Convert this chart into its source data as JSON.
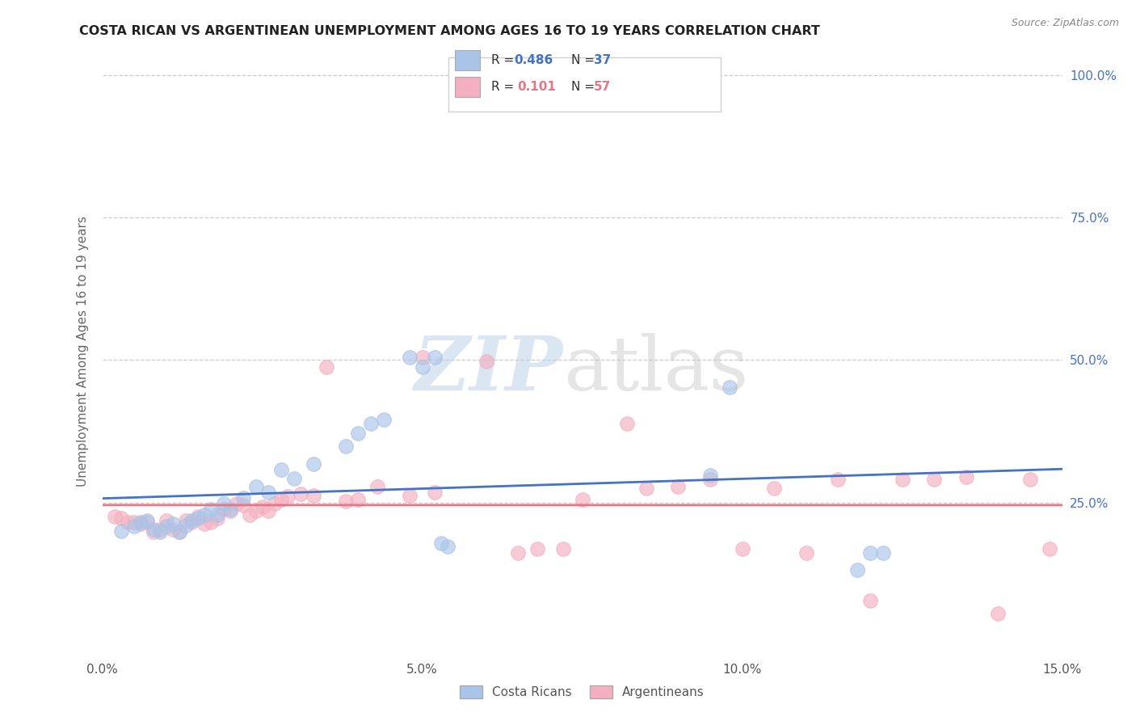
{
  "title": "COSTA RICAN VS ARGENTINEAN UNEMPLOYMENT AMONG AGES 16 TO 19 YEARS CORRELATION CHART",
  "source": "Source: ZipAtlas.com",
  "ylabel": "Unemployment Among Ages 16 to 19 years",
  "xlim": [
    0.0,
    0.15
  ],
  "ylim": [
    -0.02,
    1.05
  ],
  "xticks": [
    0.0,
    0.05,
    0.1,
    0.15
  ],
  "xticklabels": [
    "0.0%",
    "5.0%",
    "10.0%",
    "15.0%"
  ],
  "right_yticks": [
    1.0,
    0.75,
    0.5,
    0.25
  ],
  "right_yticklabels": [
    "100.0%",
    "75.0%",
    "50.0%",
    "25.0%"
  ],
  "blue_scatter_color": "#aac4e8",
  "pink_scatter_color": "#f4b0c0",
  "blue_line_color": "#4472c4",
  "pink_line_color": "#e07888",
  "title_color": "#222222",
  "source_color": "#888888",
  "grid_color": "#cccccc",
  "legend_label_blue": "Costa Ricans",
  "legend_label_pink": "Argentineans",
  "costa_rican_x": [
    0.003,
    0.005,
    0.006,
    0.007,
    0.008,
    0.009,
    0.01,
    0.011,
    0.012,
    0.013,
    0.014,
    0.015,
    0.016,
    0.017,
    0.018,
    0.019,
    0.02,
    0.022,
    0.024,
    0.026,
    0.028,
    0.03,
    0.033,
    0.038,
    0.04,
    0.042,
    0.044,
    0.048,
    0.05,
    0.052,
    0.053,
    0.054,
    0.095,
    0.098,
    0.118,
    0.12,
    0.122
  ],
  "costa_rican_y": [
    0.2,
    0.208,
    0.215,
    0.218,
    0.202,
    0.198,
    0.208,
    0.212,
    0.198,
    0.21,
    0.218,
    0.222,
    0.228,
    0.238,
    0.228,
    0.248,
    0.238,
    0.258,
    0.278,
    0.268,
    0.308,
    0.292,
    0.318,
    0.348,
    0.372,
    0.388,
    0.395,
    0.505,
    0.488,
    0.505,
    0.178,
    0.172,
    0.298,
    0.452,
    0.132,
    0.162,
    0.162
  ],
  "argentinean_x": [
    0.002,
    0.003,
    0.004,
    0.005,
    0.006,
    0.007,
    0.008,
    0.009,
    0.01,
    0.011,
    0.012,
    0.013,
    0.014,
    0.015,
    0.016,
    0.017,
    0.018,
    0.019,
    0.02,
    0.021,
    0.022,
    0.023,
    0.024,
    0.025,
    0.026,
    0.027,
    0.028,
    0.029,
    0.031,
    0.033,
    0.035,
    0.038,
    0.04,
    0.043,
    0.048,
    0.05,
    0.052,
    0.06,
    0.065,
    0.068,
    0.072,
    0.075,
    0.082,
    0.085,
    0.09,
    0.095,
    0.1,
    0.105,
    0.11,
    0.115,
    0.12,
    0.125,
    0.13,
    0.135,
    0.14,
    0.145,
    0.148
  ],
  "argentinean_y": [
    0.225,
    0.222,
    0.215,
    0.215,
    0.212,
    0.215,
    0.198,
    0.202,
    0.218,
    0.202,
    0.198,
    0.218,
    0.215,
    0.225,
    0.212,
    0.215,
    0.222,
    0.238,
    0.235,
    0.248,
    0.245,
    0.228,
    0.235,
    0.242,
    0.235,
    0.248,
    0.255,
    0.26,
    0.265,
    0.262,
    0.488,
    0.252,
    0.255,
    0.278,
    0.262,
    0.505,
    0.268,
    0.498,
    0.162,
    0.168,
    0.168,
    0.255,
    0.388,
    0.275,
    0.278,
    0.29,
    0.168,
    0.275,
    0.162,
    0.29,
    0.078,
    0.29,
    0.29,
    0.295,
    0.055,
    0.29,
    0.168
  ]
}
